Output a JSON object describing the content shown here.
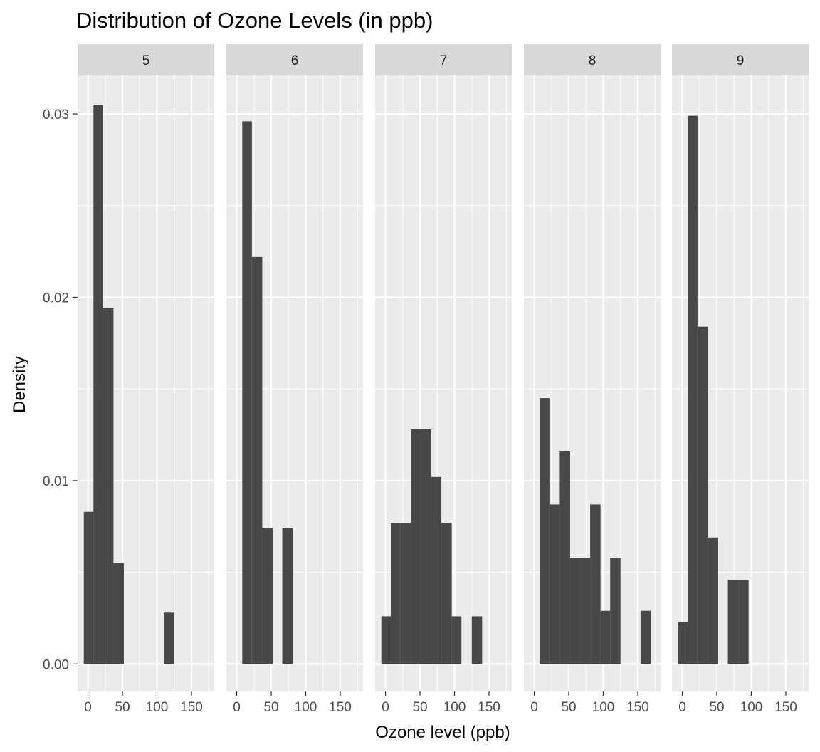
{
  "chart_data": {
    "type": "bar",
    "subtype": "histogram",
    "title": "Distribution of Ozone Levels (in ppb)",
    "xlabel": "Ozone level (ppb)",
    "ylabel": "Density",
    "xlim": [
      -15,
      183
    ],
    "ylim": [
      -0.0015,
      0.0321
    ],
    "x_ticks": [
      0,
      50,
      100,
      150
    ],
    "x_tick_labels": [
      "0",
      "50",
      "100",
      "150"
    ],
    "y_ticks": [
      0,
      0.01,
      0.02,
      0.03
    ],
    "y_tick_labels": [
      "0.00",
      "0.01",
      "0.02",
      "0.03"
    ],
    "grid": true,
    "facet_by": "Month",
    "bar_color": "#474747",
    "panel_background": "#ebebeb",
    "strip_background": "#d9d9d9",
    "grid_color": "#ffffff",
    "panels": [
      {
        "label": "5",
        "bars": [
          {
            "x0": -6,
            "x1": 8,
            "density": 0.0083
          },
          {
            "x0": 8,
            "x1": 22,
            "density": 0.0305
          },
          {
            "x0": 22,
            "x1": 37,
            "density": 0.0194
          },
          {
            "x0": 37,
            "x1": 52,
            "density": 0.0055
          },
          {
            "x0": 110,
            "x1": 125,
            "density": 0.0028
          }
        ]
      },
      {
        "label": "6",
        "bars": [
          {
            "x0": 8,
            "x1": 22,
            "density": 0.0296
          },
          {
            "x0": 22,
            "x1": 37,
            "density": 0.0222
          },
          {
            "x0": 37,
            "x1": 52,
            "density": 0.0074
          },
          {
            "x0": 66,
            "x1": 81,
            "density": 0.0074
          }
        ]
      },
      {
        "label": "7",
        "bars": [
          {
            "x0": -6,
            "x1": 8,
            "density": 0.0026
          },
          {
            "x0": 8,
            "x1": 22,
            "density": 0.0077
          },
          {
            "x0": 22,
            "x1": 37,
            "density": 0.0077
          },
          {
            "x0": 37,
            "x1": 52,
            "density": 0.0128
          },
          {
            "x0": 52,
            "x1": 66,
            "density": 0.0128
          },
          {
            "x0": 66,
            "x1": 81,
            "density": 0.0102
          },
          {
            "x0": 81,
            "x1": 96,
            "density": 0.0077
          },
          {
            "x0": 96,
            "x1": 110,
            "density": 0.0026
          },
          {
            "x0": 125,
            "x1": 140,
            "density": 0.0026
          }
        ]
      },
      {
        "label": "8",
        "bars": [
          {
            "x0": 8,
            "x1": 22,
            "density": 0.0145
          },
          {
            "x0": 22,
            "x1": 37,
            "density": 0.0087
          },
          {
            "x0": 37,
            "x1": 52,
            "density": 0.0116
          },
          {
            "x0": 52,
            "x1": 66,
            "density": 0.0058
          },
          {
            "x0": 66,
            "x1": 81,
            "density": 0.0058
          },
          {
            "x0": 81,
            "x1": 96,
            "density": 0.0087
          },
          {
            "x0": 96,
            "x1": 110,
            "density": 0.0029
          },
          {
            "x0": 110,
            "x1": 125,
            "density": 0.0058
          },
          {
            "x0": 154,
            "x1": 169,
            "density": 0.0029
          }
        ]
      },
      {
        "label": "9",
        "bars": [
          {
            "x0": -6,
            "x1": 8,
            "density": 0.0023
          },
          {
            "x0": 8,
            "x1": 22,
            "density": 0.0299
          },
          {
            "x0": 22,
            "x1": 37,
            "density": 0.0184
          },
          {
            "x0": 37,
            "x1": 52,
            "density": 0.0069
          },
          {
            "x0": 66,
            "x1": 81,
            "density": 0.0046
          },
          {
            "x0": 81,
            "x1": 96,
            "density": 0.0046
          }
        ]
      }
    ]
  }
}
